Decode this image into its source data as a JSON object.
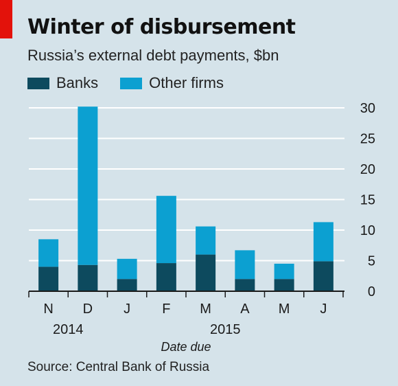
{
  "header": {
    "title": "Winter of disbursement",
    "subtitle": "Russia’s external debt payments, $bn"
  },
  "footer": {
    "source": "Source: Central Bank of Russia"
  },
  "chart_data": {
    "type": "bar",
    "stacked": true,
    "categories": [
      "N",
      "D",
      "J",
      "F",
      "M",
      "A",
      "M",
      "J"
    ],
    "year_labels": [
      {
        "label": "2014",
        "categories": [
          "N",
          "D"
        ]
      },
      {
        "label": "2015",
        "categories": [
          "J",
          "F",
          "M",
          "A",
          "M",
          "J"
        ]
      }
    ],
    "series": [
      {
        "name": "Banks",
        "values": [
          4.0,
          4.3,
          2.0,
          4.6,
          6.0,
          2.0,
          2.0,
          4.9
        ],
        "color": "#0d4a5e"
      },
      {
        "name": "Other firms",
        "values": [
          4.5,
          25.9,
          3.3,
          11.0,
          4.6,
          4.7,
          2.5,
          6.4
        ],
        "color": "#0ca0d1"
      }
    ],
    "xlabel": "Date due",
    "ylabel": "",
    "ylim": [
      0,
      30
    ],
    "yticks": [
      0,
      5,
      10,
      15,
      20,
      25,
      30
    ],
    "grid": true,
    "axis_position": "right",
    "legend_position": "top-left"
  }
}
